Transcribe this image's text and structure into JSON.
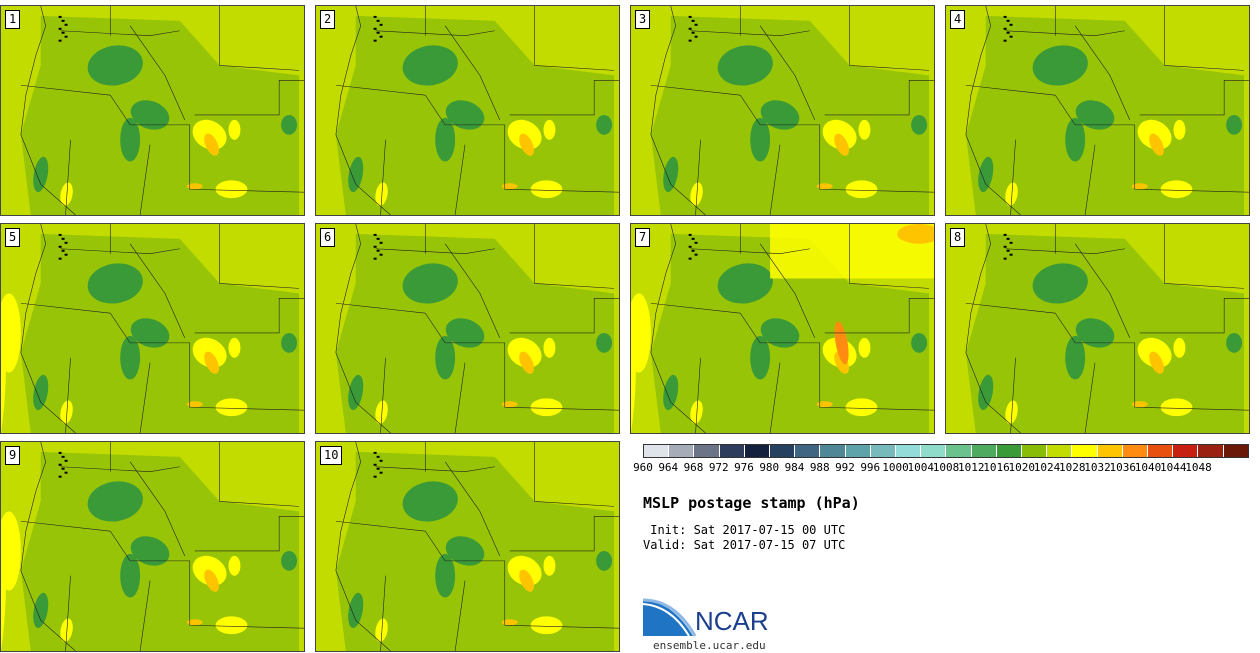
{
  "panels": [
    {
      "label": "1"
    },
    {
      "label": "2"
    },
    {
      "label": "3"
    },
    {
      "label": "4"
    },
    {
      "label": "5"
    },
    {
      "label": "6"
    },
    {
      "label": "7"
    },
    {
      "label": "8"
    },
    {
      "label": "9"
    },
    {
      "label": "10"
    }
  ],
  "colorbar": {
    "levels": [
      "960",
      "964",
      "968",
      "972",
      "976",
      "980",
      "984",
      "988",
      "992",
      "996",
      "1000",
      "1004",
      "1008",
      "1012",
      "1016",
      "1020",
      "1024",
      "1028",
      "1032",
      "1036",
      "1040",
      "1044",
      "1048"
    ],
    "colors": [
      "#dfe3ea",
      "#a6acb8",
      "#6c7488",
      "#2e3d5c",
      "#14213e",
      "#26405f",
      "#3f6582",
      "#4f8797",
      "#5fa3aa",
      "#78b9bb",
      "#94dcd9",
      "#8fdccb",
      "#6cc28c",
      "#4eaa5e",
      "#3a9a38",
      "#88bc08",
      "#c2dc00",
      "#ffff00",
      "#ffc400",
      "#ff8c10",
      "#e85010",
      "#c82010",
      "#9a2010",
      "#6a1808"
    ]
  },
  "title": "MSLP postage stamp (hPa)",
  "init": " Init: Sat 2017-07-15 00 UTC",
  "valid": "Valid: Sat 2017-07-15 07 UTC",
  "logo": {
    "text": "NCAR",
    "url": "ensemble.ucar.edu"
  }
}
